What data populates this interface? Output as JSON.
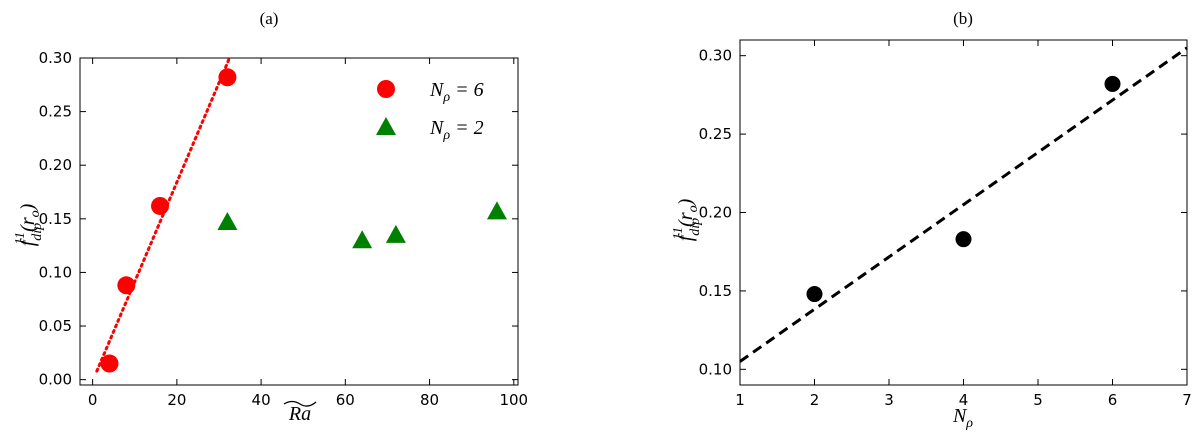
{
  "chart_data": [
    {
      "panel_label": "(a)",
      "type": "scatter",
      "xlabel": "Ra",
      "ylabel": "f_dip^11(r_o)",
      "xlim": [
        -3,
        101
      ],
      "ylim": [
        -0.005,
        0.3
      ],
      "xticks": [
        0,
        20,
        40,
        60,
        80,
        100
      ],
      "yticks": [
        "0.00",
        "0.05",
        "0.10",
        "0.15",
        "0.20",
        "0.25",
        "0.30"
      ],
      "grid": false,
      "legend_position": "top-right",
      "series": [
        {
          "name": "N_ρ = 6",
          "legend_text": "Nρ = 6",
          "marker": "circle",
          "color": "#ff0000",
          "points": [
            [
              4,
              0.015
            ],
            [
              8,
              0.088
            ],
            [
              16,
              0.162
            ],
            [
              32,
              0.282
            ]
          ]
        },
        {
          "name": "N_ρ = 2",
          "legend_text": "Nρ = 2",
          "marker": "triangle",
          "color": "#008000",
          "points": [
            [
              32,
              0.147
            ],
            [
              64,
              0.13
            ],
            [
              72,
              0.135
            ],
            [
              96,
              0.157
            ]
          ]
        }
      ],
      "fit_line": {
        "style": "dotted",
        "color": "#ff0000",
        "from": [
          1,
          0.008
        ],
        "to": [
          32.5,
          0.3
        ]
      }
    },
    {
      "panel_label": "(b)",
      "type": "scatter",
      "xlabel": "Nρ",
      "ylabel": "f_dip^11(r_o)",
      "xlim": [
        1,
        7
      ],
      "ylim": [
        0.09,
        0.31
      ],
      "xticks": [
        1,
        2,
        3,
        4,
        5,
        6,
        7
      ],
      "yticks": [
        "0.10",
        "0.15",
        "0.20",
        "0.25",
        "0.30"
      ],
      "grid": false,
      "series": [
        {
          "marker": "circle",
          "color": "#000000",
          "points": [
            [
              2,
              0.148
            ],
            [
              4,
              0.183
            ],
            [
              6,
              0.282
            ]
          ]
        }
      ],
      "fit_line": {
        "style": "dashed",
        "color": "#000000",
        "from": [
          1,
          0.105
        ],
        "to": [
          7,
          0.305
        ]
      }
    }
  ]
}
